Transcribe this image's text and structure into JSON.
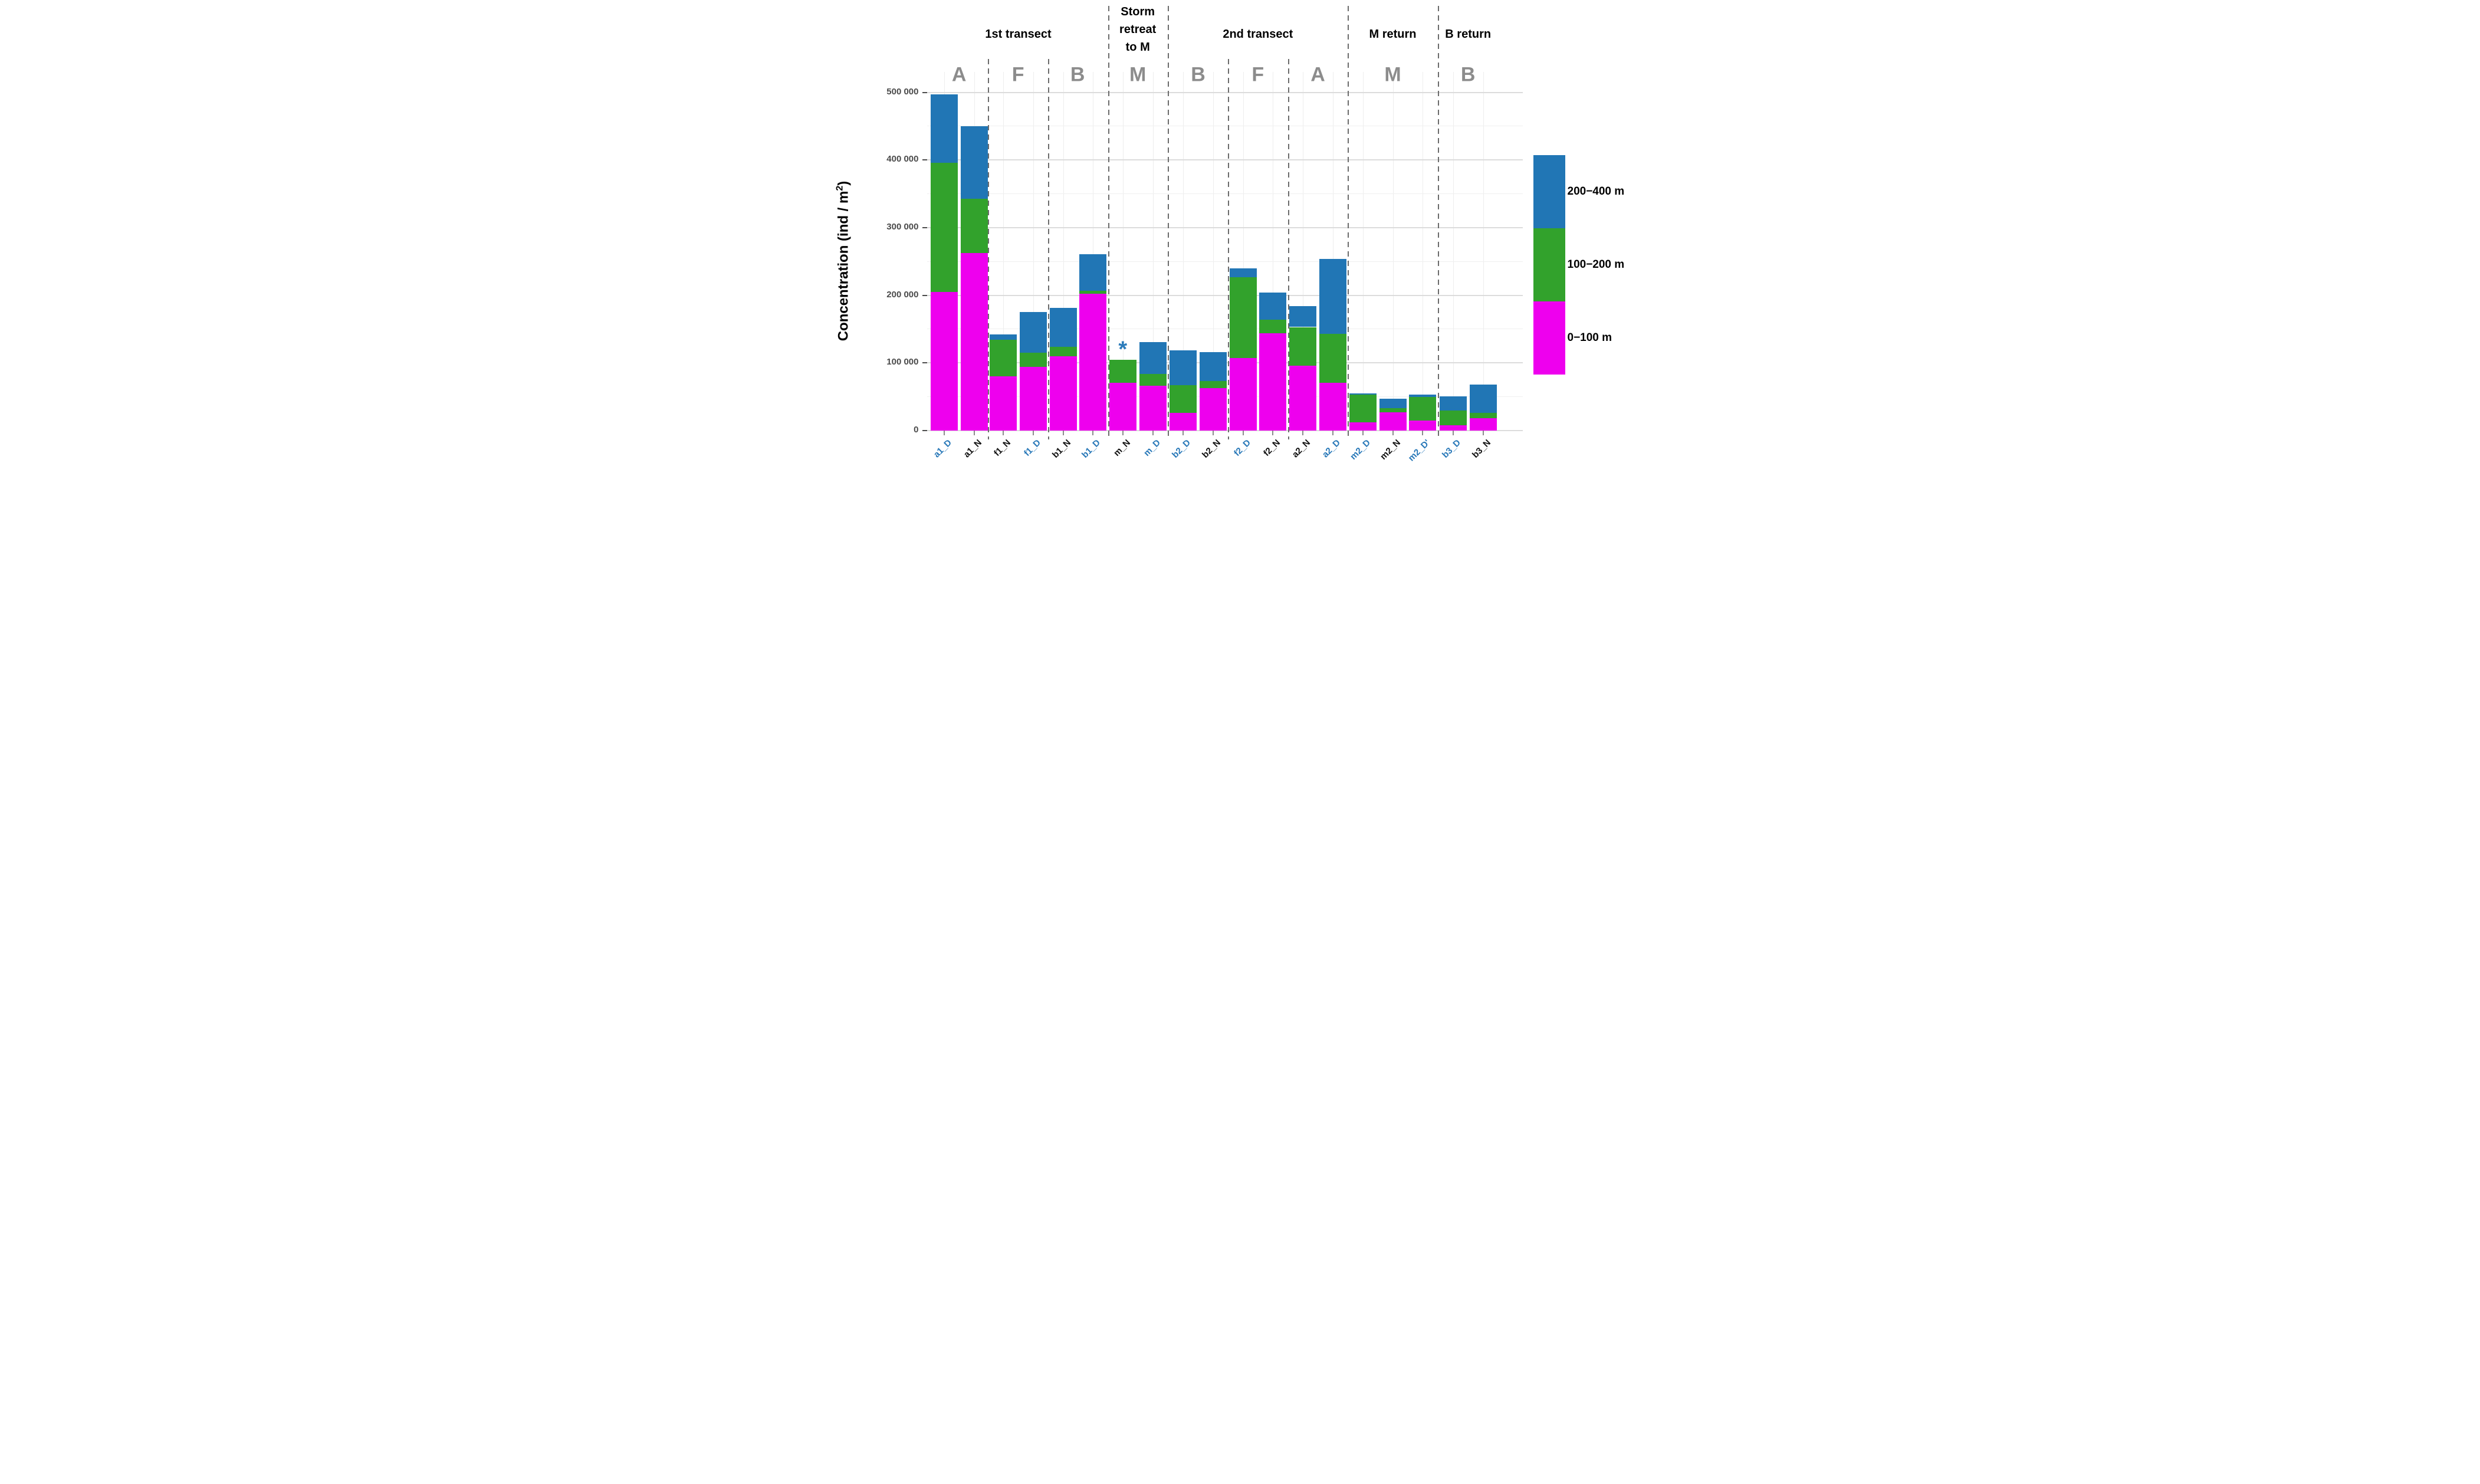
{
  "figure_kind": "stacked-bar-chart",
  "y_axis": {
    "title_prefix": "Concentration (ind / m",
    "title_sup": "2",
    "title_suffix": ")",
    "tick_labels": [
      "0",
      "100 000",
      "200 000",
      "300 000",
      "400 000",
      "500 000"
    ]
  },
  "x_axis": {
    "labels": [
      "a1_D",
      "a1_N",
      "f1_N",
      "f1_D",
      "b1_N",
      "b1_D",
      "m_N",
      "m_D",
      "b2_D",
      "b2_N",
      "f2_D",
      "f2_N",
      "a2_N",
      "a2_D",
      "m2_D",
      "m2_N",
      "m2_D'",
      "b3_D",
      "b3_N"
    ],
    "day_label_color": "#2878b8",
    "night_label_color": "#111111"
  },
  "sections": [
    {
      "lines": [
        "1st transect"
      ]
    },
    {
      "lines": [
        "Storm",
        "retreat",
        "to M"
      ]
    },
    {
      "lines": [
        "2nd transect"
      ]
    },
    {
      "lines": [
        "M return"
      ]
    },
    {
      "lines": [
        "B return"
      ]
    }
  ],
  "group_letters": [
    "A",
    "F",
    "B",
    "M",
    "B",
    "F",
    "A",
    "M",
    "B"
  ],
  "legend": {
    "entries": [
      {
        "label": "200−400 m",
        "color": "#2176b5"
      },
      {
        "label": "100−200 m",
        "color": "#32a22c"
      },
      {
        "label": "0−100 m",
        "color": "#ee00ee"
      }
    ]
  },
  "annotation": {
    "symbol": "*",
    "category": "m_N",
    "color": "#2b7bba"
  },
  "chart_data": {
    "type": "bar",
    "stacked": true,
    "title": "",
    "xlabel": "",
    "ylabel": "Concentration (ind / m2)",
    "ylim": [
      0,
      500000
    ],
    "ytick_step": 100000,
    "grid": true,
    "legend_position": "right",
    "categories": [
      "a1_D",
      "a1_N",
      "f1_N",
      "f1_D",
      "b1_N",
      "b1_D",
      "m_N",
      "m_D",
      "b2_D",
      "b2_N",
      "f2_D",
      "f2_N",
      "a2_N",
      "a2_D",
      "m2_D",
      "m2_N",
      "m2_D'",
      "b3_D",
      "b3_N"
    ],
    "series": [
      {
        "name": "0−100 m",
        "color": "#ee00ee",
        "values": [
          205000,
          262000,
          80000,
          94000,
          110000,
          202000,
          71000,
          66000,
          26000,
          63000,
          107000,
          144000,
          96000,
          71000,
          12000,
          27000,
          15000,
          8000,
          18000
        ]
      },
      {
        "name": "100−200 m",
        "color": "#32a22c",
        "values": [
          191000,
          81000,
          54000,
          21000,
          14000,
          5000,
          34000,
          18000,
          41000,
          10000,
          120000,
          20000,
          57000,
          72000,
          41000,
          6000,
          35000,
          22000,
          8000
        ]
      },
      {
        "name": "200−400 m",
        "color": "#2176b5",
        "values": [
          101000,
          107000,
          8000,
          60000,
          57000,
          54000,
          0,
          47000,
          52000,
          43000,
          13000,
          40000,
          31000,
          111000,
          2000,
          14000,
          3000,
          21000,
          42000
        ]
      }
    ],
    "section_spans": [
      {
        "label": "1st transect",
        "categories": [
          "a1_D",
          "a1_N",
          "f1_N",
          "f1_D",
          "b1_N",
          "b1_D"
        ]
      },
      {
        "label": "Storm retreat to M",
        "categories": [
          "m_N",
          "m_D"
        ]
      },
      {
        "label": "2nd transect",
        "categories": [
          "b2_D",
          "b2_N",
          "f2_D",
          "f2_N",
          "a2_N",
          "a2_D"
        ]
      },
      {
        "label": "M return",
        "categories": [
          "m2_D",
          "m2_N",
          "m2_D'"
        ]
      },
      {
        "label": "B return",
        "categories": [
          "b3_D",
          "b3_N"
        ]
      }
    ]
  }
}
